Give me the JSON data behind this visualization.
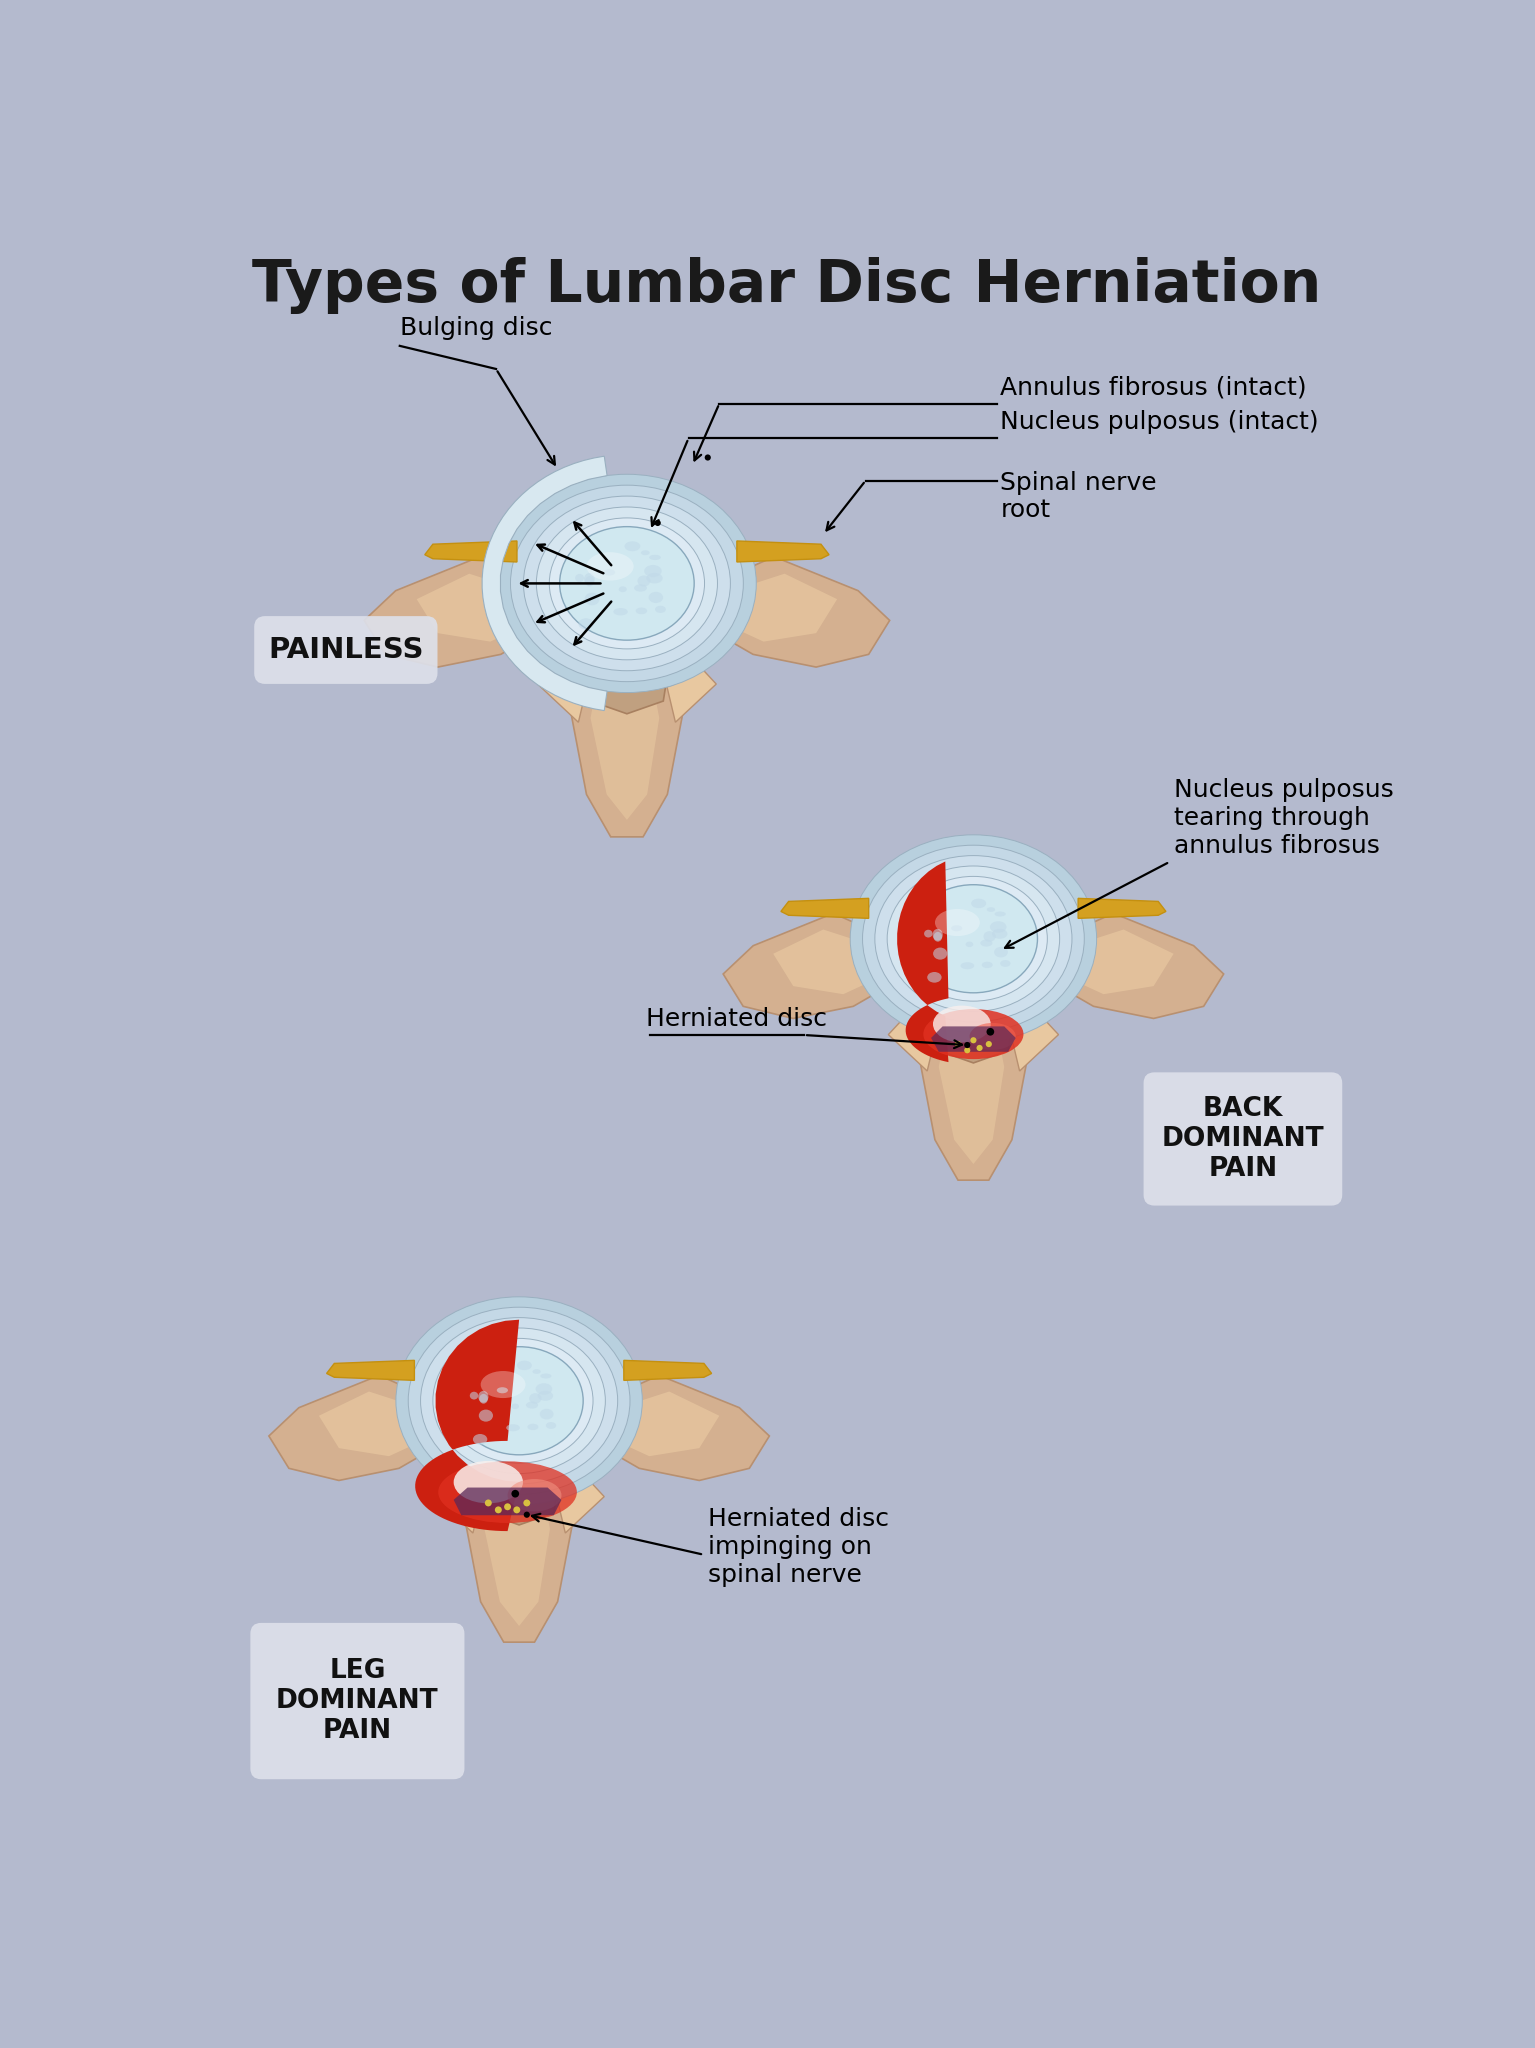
{
  "title": "Types of Lumbar Disc Herniation",
  "bg_color": "#b4bace",
  "title_fontsize": 42,
  "title_color": "#1a1a1a",
  "label_fontsize": 18,
  "label_color": "#111111",
  "badge_bg": "#dde0ea",
  "badge_text_color": "#111111",
  "annotations": {
    "bulging_disc": "Bulging disc",
    "annulus_fibrosus": "Annulus fibrosus (intact)",
    "nucleus_pulposus": "Nucleus pulposus (intact)",
    "spinal_nerve": "Spinal nerve\nroot",
    "painless": "PAINLESS",
    "herniated_disc1": "Herniated disc",
    "nucleus_tearing": "Nucleus pulposus\ntearing through\nannulus fibrosus",
    "back_dominant": "BACK\nDOMINANT\nPAIN",
    "herniated_disc2": "Herniated disc\nimpinging on\nspinal nerve",
    "leg_dominant": "LEG\nDOMINANT\nPAIN"
  },
  "colors": {
    "bone_main": "#d4b090",
    "bone_light": "#e8c8a0",
    "bone_highlight": "#f0d8b8",
    "bone_shadow": "#b89070",
    "bone_dark": "#9a7858",
    "disc_outer": "#c8dce8",
    "disc_mid": "#d8e8f0",
    "disc_inner_light": "#e0eef8",
    "disc_white": "#eaf4fc",
    "nucleus_base": "#c0d8e8",
    "nucleus_light": "#d0e8f0",
    "annulus_line": "#9ab8cc",
    "ligament_yellow": "#d4a020",
    "ligament_gold": "#c49010",
    "ligament_light": "#e8c040",
    "nerve_root": "#d4a020",
    "canal_dark": "#a88060",
    "canal_inner": "#c0a080",
    "red_hern": "#cc2010",
    "red_bright": "#e03020",
    "red_light": "#f06050",
    "red_pale": "#f09080",
    "white_hern": "#f8f0ee",
    "purple_disc": "#5a2858",
    "yellow_dot": "#d8c040",
    "cartilage_blue": "#a0c8d8",
    "process_tip": "#c0a888"
  }
}
